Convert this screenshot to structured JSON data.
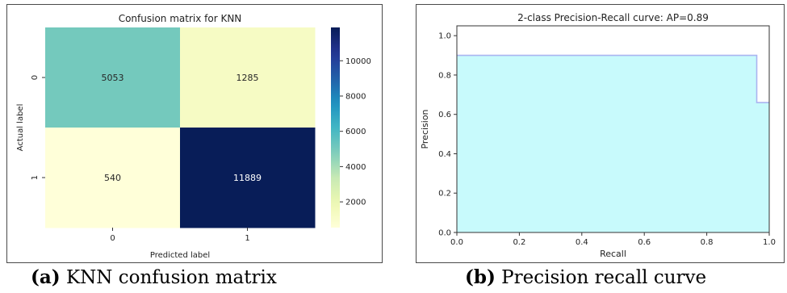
{
  "chart_data": [
    {
      "type": "heatmap",
      "title": "Confusion matrix for KNN",
      "xlabel": "Predicted label",
      "ylabel": "Actual label",
      "x_categories": [
        "0",
        "1"
      ],
      "y_categories": [
        "0",
        "1"
      ],
      "values": [
        [
          5053,
          1285
        ],
        [
          540,
          11889
        ]
      ],
      "colorbar": {
        "ticks": [
          2000,
          4000,
          6000,
          8000,
          10000
        ],
        "range": [
          540,
          11889
        ],
        "colormap": "YlGnBu"
      }
    },
    {
      "type": "area",
      "title": "2-class Precision-Recall curve: AP=0.89",
      "xlabel": "Recall",
      "ylabel": "Precision",
      "xlim": [
        0.0,
        1.0
      ],
      "ylim": [
        0.0,
        1.05
      ],
      "xticks": [
        "0.0",
        "0.2",
        "0.4",
        "0.6",
        "0.8",
        "1.0"
      ],
      "yticks": [
        "0.0",
        "0.2",
        "0.4",
        "0.6",
        "0.8",
        "1.0"
      ],
      "step_points": [
        [
          0.0,
          0.9
        ],
        [
          0.96,
          0.9
        ],
        [
          0.96,
          0.66
        ],
        [
          1.0,
          0.66
        ]
      ],
      "fill_color": "#c8fafc",
      "line_color": "#aab4f0"
    }
  ],
  "captions": {
    "a_label": "(a)",
    "a_text": " KNN confusion matrix",
    "b_label": "(b)",
    "b_text": " Precision recall curve"
  }
}
